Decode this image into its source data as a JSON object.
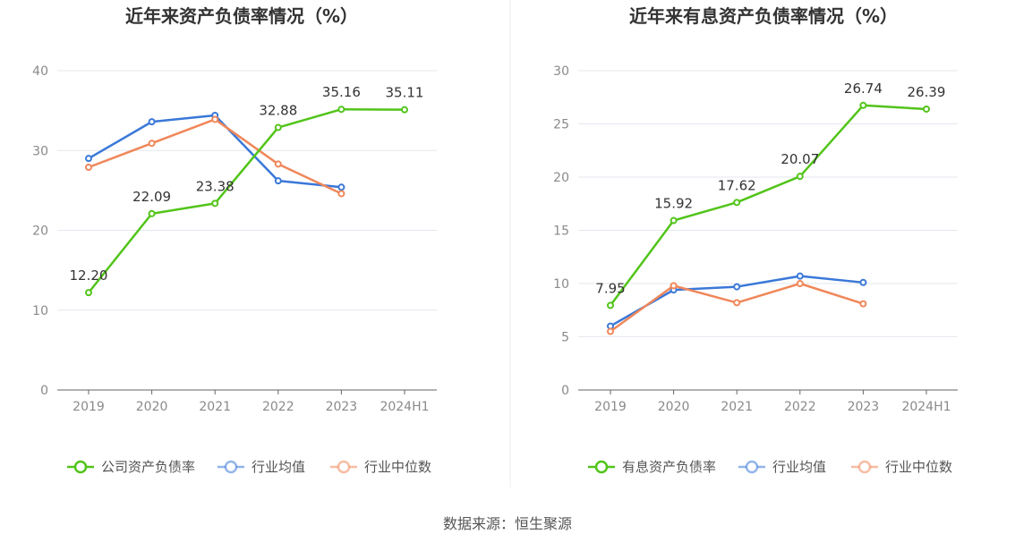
{
  "source_text": "数据来源：恒生聚源",
  "chart_data": [
    {
      "type": "line",
      "title": "近年来资产负债率情况（%）",
      "categories": [
        "2019",
        "2020",
        "2021",
        "2022",
        "2023",
        "2024H1"
      ],
      "ylim": [
        0,
        40
      ],
      "yticks": [
        0,
        10,
        20,
        30,
        40
      ],
      "grid": true,
      "legend_position": "bottom",
      "series": [
        {
          "name": "公司资产负债率",
          "color": "#52c41a",
          "values": [
            12.2,
            22.09,
            23.38,
            32.88,
            35.16,
            35.11
          ],
          "labels": [
            "12.20",
            "22.09",
            "23.38",
            "32.88",
            "35.16",
            "35.11"
          ],
          "show_labels": true
        },
        {
          "name": "行业均值",
          "color": "#3a78d8",
          "values": [
            29.0,
            33.6,
            34.4,
            26.2,
            25.4,
            null
          ],
          "show_labels": false
        },
        {
          "name": "行业中位数",
          "color": "#f0875a",
          "values": [
            27.9,
            30.9,
            33.9,
            28.3,
            24.6,
            null
          ],
          "show_labels": false
        }
      ]
    },
    {
      "type": "line",
      "title": "近年来有息资产负债率情况（%）",
      "categories": [
        "2019",
        "2020",
        "2021",
        "2022",
        "2023",
        "2024H1"
      ],
      "ylim": [
        0,
        30
      ],
      "yticks": [
        0,
        5,
        10,
        15,
        20,
        25,
        30
      ],
      "grid": true,
      "legend_position": "bottom",
      "series": [
        {
          "name": "有息资产负债率",
          "color": "#52c41a",
          "values": [
            7.95,
            15.92,
            17.62,
            20.07,
            26.74,
            26.39
          ],
          "labels": [
            "7.95",
            "15.92",
            "17.62",
            "20.07",
            "26.74",
            "26.39"
          ],
          "show_labels": true
        },
        {
          "name": "行业均值",
          "color": "#3a78d8",
          "values": [
            6.0,
            9.4,
            9.7,
            10.7,
            10.1,
            null
          ],
          "show_labels": false
        },
        {
          "name": "行业中位数",
          "color": "#f0875a",
          "values": [
            5.5,
            9.8,
            8.2,
            10.0,
            8.1,
            null
          ],
          "show_labels": false
        }
      ]
    }
  ]
}
